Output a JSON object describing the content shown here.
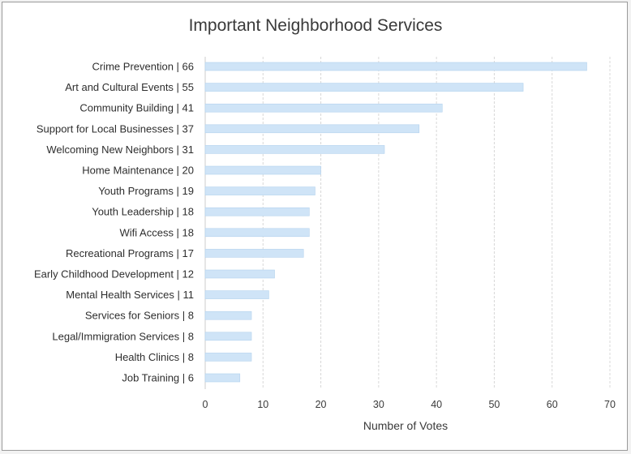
{
  "chart_data": {
    "type": "bar",
    "orientation": "horizontal",
    "title": "Important Neighborhood Services",
    "xlabel": "Number of Votes",
    "ylabel": "",
    "xlim": [
      0,
      70
    ],
    "xticks": [
      0,
      10,
      20,
      30,
      40,
      50,
      60,
      70
    ],
    "grid": true,
    "categories": [
      "Crime Prevention  | 66",
      "Art and Cultural Events  | 55",
      "Community Building  | 41",
      "Support for Local Businesses  | 37",
      "Welcoming New Neighbors  | 31",
      "Home Maintenance  | 20",
      "Youth Programs  | 19",
      "Youth Leadership  | 18",
      "Wifi Access  | 18",
      "Recreational Programs  | 17",
      "Early Childhood Development  | 12",
      "Mental Health Services  | 11",
      "Services for Seniors  | 8",
      "Legal/Immigration Services  | 8",
      "Health Clinics  | 8",
      "Job Training  | 6"
    ],
    "values": [
      66,
      55,
      41,
      37,
      31,
      20,
      19,
      18,
      18,
      17,
      12,
      11,
      8,
      8,
      8,
      6
    ],
    "colors": {
      "bar": "#cfe4f7",
      "bar_edge": "#b3d2ee",
      "grid": "#d8d8d8",
      "text": "#2e2e2e"
    }
  }
}
